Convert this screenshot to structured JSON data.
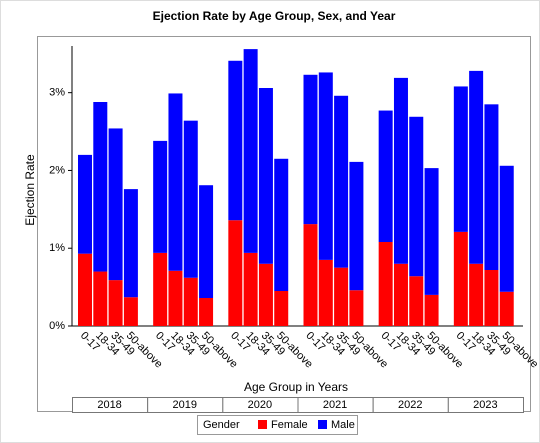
{
  "chart_data": {
    "type": "grouped-stacked-bar",
    "title": "Ejection Rate by Age Group, Sex, and Year",
    "y_label": "Ejection Rate",
    "x_label": "Age Group in Years",
    "groups": [
      "2018",
      "2019",
      "2020",
      "2021",
      "2022",
      "2023"
    ],
    "categories": [
      "0-17",
      "18-34",
      "35-49",
      "50-above"
    ],
    "legend_title": "Gender",
    "series": [
      {
        "name": "Female",
        "color": "#ff0000",
        "values": [
          [
            0.93,
            0.7,
            0.59,
            0.37
          ],
          [
            0.94,
            0.71,
            0.62,
            0.36
          ],
          [
            1.36,
            0.94,
            0.8,
            0.45
          ],
          [
            1.31,
            0.85,
            0.75,
            0.46
          ],
          [
            1.08,
            0.8,
            0.64,
            0.4
          ],
          [
            1.21,
            0.8,
            0.72,
            0.44
          ]
        ]
      },
      {
        "name": "Male",
        "color": "#0000ff",
        "values": [
          [
            1.27,
            2.18,
            1.95,
            1.39
          ],
          [
            1.44,
            2.28,
            2.02,
            1.45
          ],
          [
            2.05,
            2.62,
            2.26,
            1.7
          ],
          [
            1.92,
            2.41,
            2.21,
            1.65
          ],
          [
            1.69,
            2.39,
            2.05,
            1.63
          ],
          [
            1.87,
            2.48,
            2.13,
            1.62
          ]
        ]
      }
    ],
    "ylim": [
      0,
      3.6
    ],
    "yticks": [
      {
        "value": 0,
        "label": "0%"
      },
      {
        "value": 1,
        "label": "1%"
      },
      {
        "value": 2,
        "label": "2%"
      },
      {
        "value": 3,
        "label": "3%"
      }
    ]
  }
}
